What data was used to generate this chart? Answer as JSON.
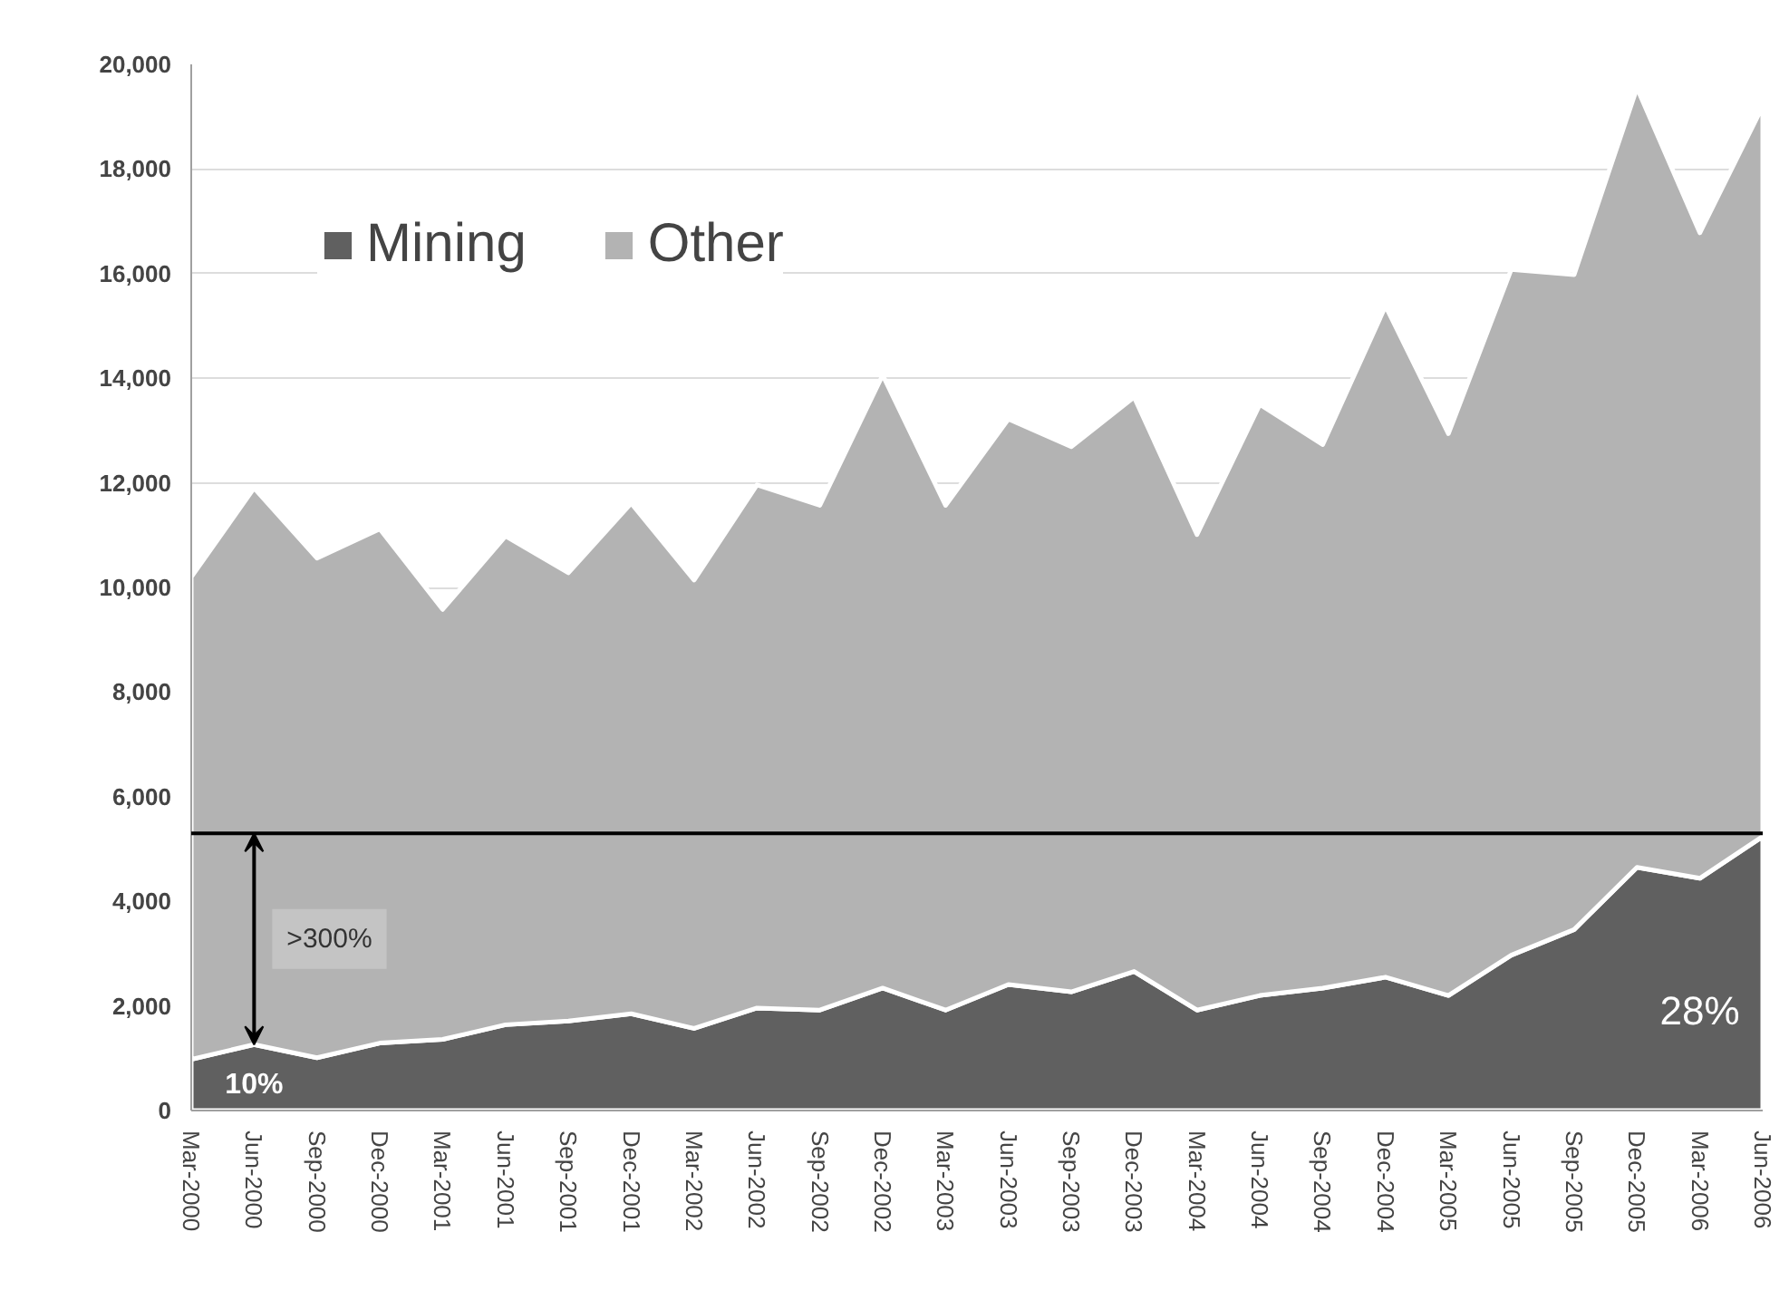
{
  "chart_data": {
    "type": "area",
    "stacked": true,
    "categories": [
      "Mar-2000",
      "Jun-2000",
      "Sep-2000",
      "Dec-2000",
      "Mar-2001",
      "Jun-2001",
      "Sep-2001",
      "Dec-2001",
      "Mar-2002",
      "Jun-2002",
      "Sep-2002",
      "Dec-2002",
      "Mar-2003",
      "Jun-2003",
      "Sep-2003",
      "Dec-2003",
      "Mar-2004",
      "Jun-2004",
      "Sep-2004",
      "Dec-2004",
      "Mar-2005",
      "Jun-2005",
      "Sep-2005",
      "Dec-2005",
      "Mar-2006",
      "Jun-2006"
    ],
    "series": [
      {
        "name": "Mining",
        "color": "#606060",
        "values": [
          980,
          1260,
          1010,
          1290,
          1360,
          1640,
          1710,
          1850,
          1570,
          1960,
          1920,
          2340,
          1920,
          2410,
          2270,
          2660,
          1920,
          2200,
          2340,
          2550,
          2200,
          2970,
          3460,
          4650,
          4440,
          5240
        ]
      },
      {
        "name": "Other",
        "color": "#b3b3b3",
        "values": [
          9220,
          10640,
          9550,
          9830,
          8220,
          9340,
          8570,
          9760,
          8570,
          10000,
          9650,
          11720,
          9650,
          10810,
          10420,
          10980,
          9090,
          11300,
          10390,
          12830,
          10740,
          13110,
          12520,
          14900,
          12340,
          13960
        ]
      }
    ],
    "ylim": [
      0,
      20000
    ],
    "yticks": [
      0,
      {
        "value": 2000,
        "label": "2,000"
      },
      {
        "value": 4000,
        "label": "4,000"
      },
      {
        "value": 6000,
        "label": "6,000"
      },
      {
        "value": 8000,
        "label": "8,000"
      },
      {
        "value": 10000,
        "label": "10,000"
      },
      {
        "value": 12000,
        "label": "12,000"
      },
      {
        "value": 14000,
        "label": "14,000"
      },
      {
        "value": 16000,
        "label": "16,000"
      },
      {
        "value": 18000,
        "label": "18,000"
      },
      {
        "value": 20000,
        "label": "20,000"
      }
    ],
    "grid": "y",
    "legend": "top",
    "ref_lines": [
      {
        "axis": "y",
        "value": 5300,
        "label": null,
        "color": "#000000"
      }
    ],
    "annotations": [
      ">300%",
      {
        "text": "10%",
        "x": "Jun-2000",
        "y": 1260
      },
      "28%"
    ]
  }
}
